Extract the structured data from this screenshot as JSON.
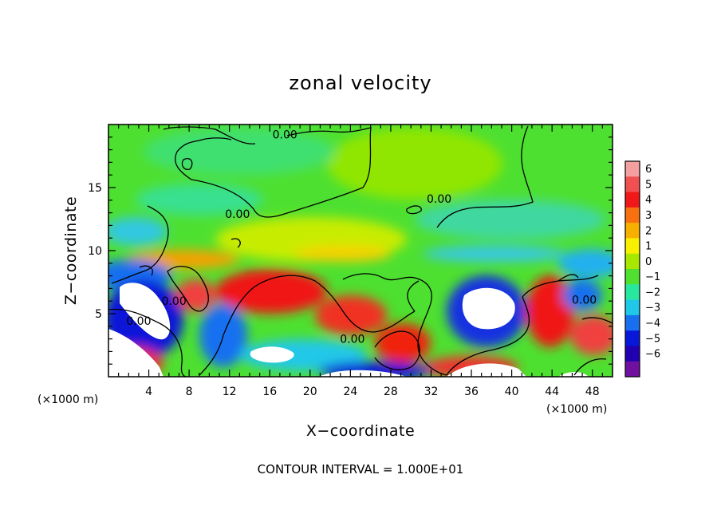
{
  "chart_data": {
    "type": "heatmap",
    "title": "zonal velocity",
    "xlabel": "X−coordinate",
    "ylabel": "Z−coordinate",
    "x_unit": "(×1000 m)",
    "y_unit": "(×1000 m)",
    "xlim": [
      0,
      50
    ],
    "ylim": [
      0,
      20
    ],
    "xticks": [
      4,
      8,
      12,
      16,
      20,
      24,
      28,
      32,
      36,
      40,
      44,
      48
    ],
    "yticks": [
      5,
      10,
      15
    ],
    "colorbar": {
      "levels": [
        6,
        5,
        4,
        3,
        2,
        1,
        0,
        -1,
        -2,
        -3,
        -4,
        -5,
        -6
      ],
      "level_labels": [
        "6",
        "5",
        "4",
        "3",
        "2",
        "1",
        "0",
        "−1",
        "−2",
        "−3",
        "−4",
        "−5",
        "−6"
      ],
      "colors": [
        "#f4a0a0",
        "#f05050",
        "#f01818",
        "#f87010",
        "#f8b000",
        "#f8f000",
        "#a8e800",
        "#50e030",
        "#28e8a0",
        "#20c8e8",
        "#1870f0",
        "#0818d8",
        "#2000b0",
        "#7010a0"
      ]
    },
    "contour_labels": [
      {
        "text": "0.00",
        "x": 17.5,
        "z": 18.9
      },
      {
        "text": "0.00",
        "x": 12.8,
        "z": 12.6
      },
      {
        "text": "0.00",
        "x": 32.8,
        "z": 13.8
      },
      {
        "text": "0.00",
        "x": 6.5,
        "z": 5.7
      },
      {
        "text": "0.00",
        "x": 3.0,
        "z": 4.1
      },
      {
        "text": "0.00",
        "x": 24.2,
        "z": 2.7
      },
      {
        "text": "0.00",
        "x": 47.2,
        "z": 5.8
      }
    ],
    "footnote": "CONTOUR INTERVAL = 1.000E+01"
  }
}
